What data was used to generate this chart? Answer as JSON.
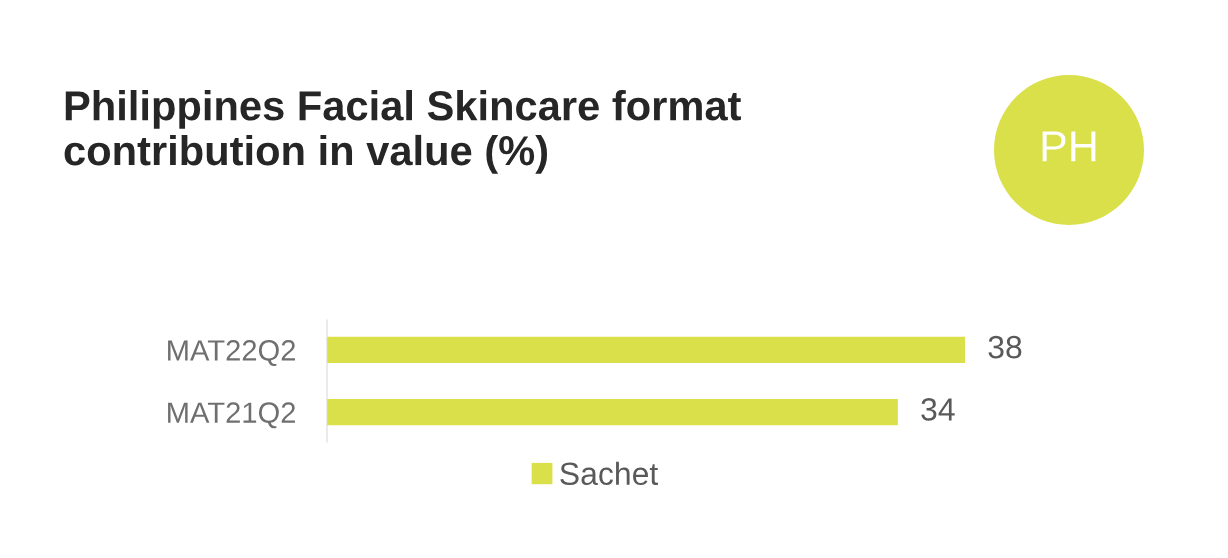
{
  "chart_data": {
    "type": "bar",
    "orientation": "horizontal",
    "title": "Philippines Facial Skincare format\ncontribution in value (%)",
    "categories": [
      "MAT22Q2",
      "MAT21Q2"
    ],
    "series": [
      {
        "name": "Sachet",
        "color": "#d9e04a",
        "values": [
          38,
          34
        ]
      }
    ],
    "data_labels": true,
    "legend": "bottom",
    "grid": false,
    "annotations": [
      "PH"
    ]
  }
}
